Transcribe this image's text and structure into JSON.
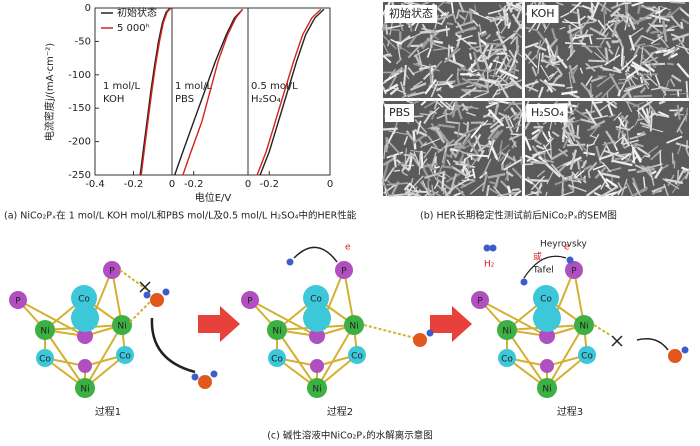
{
  "chart_data": {
    "type": "line",
    "xlabel": "电位E/V",
    "ylabel": "电流密度j/(mA·cm⁻²)",
    "ylim": [
      -250,
      0
    ],
    "yticks": [
      0,
      -50,
      -100,
      -150,
      -200,
      -250
    ],
    "series": [
      {
        "name": "初始状态",
        "color": "#222222"
      },
      {
        "name": "5 000ʰ",
        "color": "#d62020"
      }
    ],
    "panels": [
      {
        "label": [
          "1 mol/L",
          "KOH"
        ],
        "xlim": [
          -0.4,
          0
        ],
        "xticks": [
          -0.4,
          -0.2,
          0
        ],
        "data": [
          {
            "x": [
              -0.165,
              -0.15,
              -0.13,
              -0.11,
              -0.09,
              -0.07,
              -0.05,
              -0.03,
              -0.01
            ],
            "values": [
              -250,
              -215,
              -170,
              -125,
              -85,
              -50,
              -22,
              -6,
              0
            ]
          },
          {
            "x": [
              -0.16,
              -0.145,
              -0.125,
              -0.105,
              -0.085,
              -0.065,
              -0.045,
              -0.025,
              -0.005
            ],
            "values": [
              -250,
              -215,
              -170,
              -125,
              -85,
              -50,
              -22,
              -6,
              0
            ]
          }
        ]
      },
      {
        "label": [
          "1 mol/L",
          "PBS"
        ],
        "xlim": [
          -0.28,
          0
        ],
        "xticks": [
          -0.2,
          0
        ],
        "data": [
          {
            "x": [
              -0.27,
              -0.24,
              -0.2,
              -0.16,
              -0.12,
              -0.08,
              -0.05,
              -0.02
            ],
            "values": [
              -250,
              -215,
              -170,
              -125,
              -80,
              -40,
              -15,
              -2
            ]
          },
          {
            "x": [
              -0.24,
              -0.21,
              -0.17,
              -0.14,
              -0.11,
              -0.075,
              -0.045,
              -0.02
            ],
            "values": [
              -250,
              -215,
              -170,
              -125,
              -80,
              -40,
              -15,
              -2
            ]
          }
        ]
      },
      {
        "label": [
          "0.5 mol/L",
          "H₂SO₄"
        ],
        "xlim": [
          -0.27,
          0
        ],
        "xticks": [
          -0.2,
          0
        ],
        "data": [
          {
            "x": [
              -0.23,
              -0.2,
              -0.17,
              -0.14,
              -0.11,
              -0.08,
              -0.05,
              -0.02
            ],
            "values": [
              -250,
              -215,
              -170,
              -125,
              -80,
              -40,
              -15,
              -2
            ]
          },
          {
            "x": [
              -0.24,
              -0.21,
              -0.18,
              -0.15,
              -0.12,
              -0.09,
              -0.06,
              -0.03
            ],
            "values": [
              -250,
              -215,
              -170,
              -125,
              -80,
              -40,
              -15,
              -2
            ]
          }
        ]
      }
    ],
    "caption": "(a) NiCo₂Pₓ在 1 mol/L KOH mol/L和PBS mol/L及0.5 mol/L H₂SO₄中的HER性能"
  },
  "sem": {
    "labels": [
      "初始状态",
      "KOH",
      "PBS",
      "H₂SO₄"
    ],
    "caption": "(b) HER长期稳定性测试前后NiCo₂Pₓ的SEM图"
  },
  "scheme": {
    "processes": [
      {
        "label": "过程1",
        "atoms": [
          "P",
          "P",
          "Co",
          "Ni",
          "Ni",
          "Co",
          "Co",
          "Ni"
        ]
      },
      {
        "label": "过程2",
        "atoms": [
          "P",
          "P",
          "Co",
          "Ni",
          "Ni",
          "Co",
          "Co",
          "Ni"
        ],
        "notes": [
          "e"
        ]
      },
      {
        "label": "过程3",
        "atoms": [
          "P",
          "P",
          "Co",
          "Ni",
          "Ni",
          "Co",
          "Co",
          "Ni"
        ],
        "notes": [
          "Heyrovsky",
          "或",
          "Tafel",
          "H₂",
          "e"
        ]
      }
    ],
    "caption": "(c) 碱性溶液中NiCo₂Pₓ的水解离示意图"
  }
}
